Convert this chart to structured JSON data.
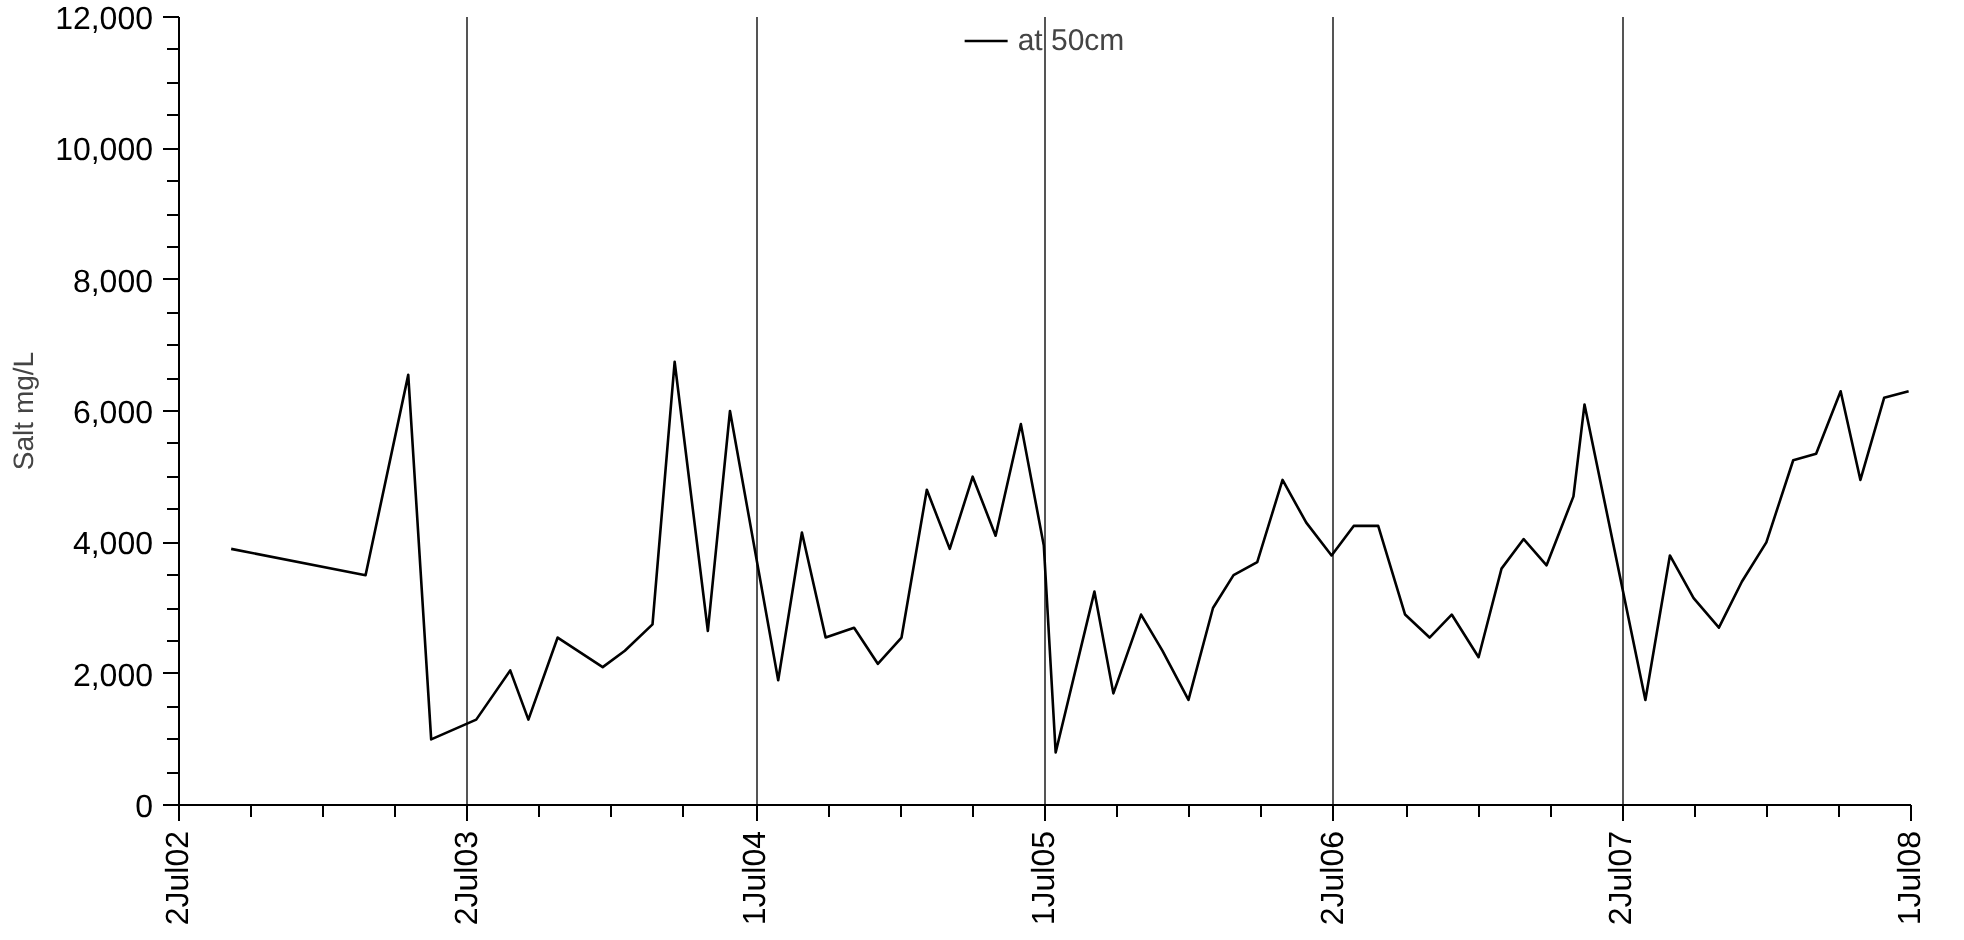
{
  "chart_data": {
    "type": "line",
    "ylabel": "Salt mg/L",
    "x": [
      "2002-09-06",
      "2003-02-23",
      "2003-04-18",
      "2003-05-17",
      "2003-07-13",
      "2003-08-25",
      "2003-09-17",
      "2003-10-24",
      "2003-12-20",
      "2004-01-17",
      "2004-02-21",
      "2004-03-20",
      "2004-05-01",
      "2004-05-29",
      "2004-07-29",
      "2004-08-28",
      "2004-09-27",
      "2004-11-02",
      "2004-12-02",
      "2005-01-01",
      "2005-02-02",
      "2005-03-03",
      "2005-04-01",
      "2005-04-30",
      "2005-06-01",
      "2005-06-30",
      "2005-07-15",
      "2005-09-02",
      "2005-09-26",
      "2005-10-31",
      "2005-11-27",
      "2005-12-30",
      "2006-01-30",
      "2006-02-25",
      "2006-03-27",
      "2006-04-28",
      "2006-05-28",
      "2006-06-29",
      "2006-07-27",
      "2006-08-27",
      "2006-09-30",
      "2006-10-31",
      "2006-11-28",
      "2007-01-01",
      "2007-01-30",
      "2007-02-27",
      "2007-03-28",
      "2007-05-01",
      "2007-05-15",
      "2007-07-31",
      "2007-08-31",
      "2007-09-30",
      "2007-11-01",
      "2007-11-30",
      "2007-12-31",
      "2008-02-03",
      "2008-03-03",
      "2008-04-03",
      "2008-04-28",
      "2008-05-28",
      "2008-06-28"
    ],
    "series": [
      {
        "name": "at 50cm",
        "color": "#000000",
        "values": [
          3900,
          3500,
          6550,
          1000,
          1300,
          2050,
          1300,
          2550,
          2100,
          2350,
          2750,
          6750,
          2650,
          6000,
          1900,
          4150,
          2550,
          2700,
          2150,
          2550,
          4800,
          3900,
          5000,
          4100,
          5800,
          3950,
          800,
          3250,
          1700,
          2900,
          2350,
          1600,
          3000,
          3500,
          3700,
          4950,
          4300,
          3800,
          4250,
          4250,
          2900,
          2550,
          2900,
          2250,
          3600,
          4050,
          3650,
          4700,
          6100,
          1600,
          3800,
          3150,
          2700,
          3400,
          4000,
          5250,
          5350,
          6300,
          4950,
          6200,
          6300
        ]
      }
    ],
    "xlim": [
      "2002-07-02",
      "2008-07-01"
    ],
    "xticks": [
      {
        "value": "2002-07-02",
        "label": "2Jul02"
      },
      {
        "value": "2003-07-02",
        "label": "2Jul03"
      },
      {
        "value": "2004-07-01",
        "label": "1Jul04"
      },
      {
        "value": "2005-07-01",
        "label": "1Jul05"
      },
      {
        "value": "2006-07-02",
        "label": "2Jul06"
      },
      {
        "value": "2007-07-02",
        "label": "2Jul07"
      },
      {
        "value": "2008-07-01",
        "label": "1Jul08"
      }
    ],
    "ylim": [
      0,
      12000
    ],
    "yticks": [
      {
        "value": 0,
        "label": "0"
      },
      {
        "value": 2000,
        "label": "2,000"
      },
      {
        "value": 4000,
        "label": "4,000"
      },
      {
        "value": 6000,
        "label": "6,000"
      },
      {
        "value": 8000,
        "label": "8,000"
      },
      {
        "value": 10000,
        "label": "10,000"
      },
      {
        "value": 12000,
        "label": "12,000"
      }
    ],
    "grid": "x",
    "legend": "top",
    "marker": "none",
    "line_style": "solid"
  }
}
